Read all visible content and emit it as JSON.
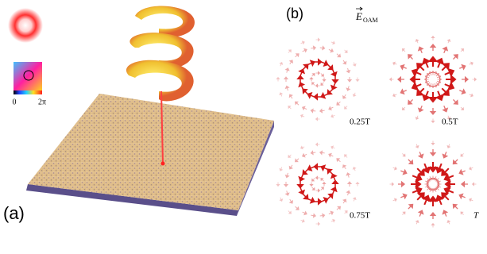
{
  "panel_a": {
    "label": "(a)",
    "colorbar": {
      "min_label": "0",
      "max_label": "2π"
    }
  },
  "panel_b": {
    "label": "(b)",
    "title_symbol": "E",
    "title_subscript": "OAM",
    "times": [
      "0.25T",
      "0.5T",
      "0.75T",
      "T"
    ]
  }
}
